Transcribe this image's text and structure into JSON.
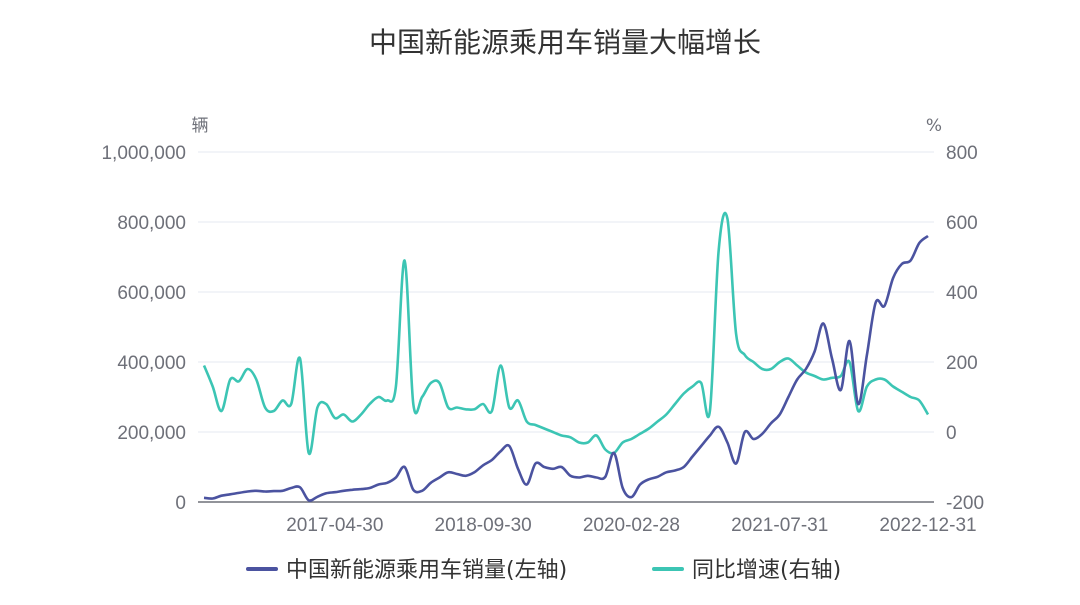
{
  "chart_data": {
    "type": "line",
    "title": "中国新能源乘用车销量大幅增长",
    "left_axis": {
      "unit": "辆",
      "ylim": [
        0,
        1000000
      ],
      "ticks": [
        "0",
        "200,000",
        "400,000",
        "600,000",
        "800,000",
        "1,000,000"
      ]
    },
    "right_axis": {
      "unit": "%",
      "ylim": [
        -200,
        800
      ],
      "ticks": [
        "-200",
        "0",
        "200",
        "400",
        "600",
        "800"
      ]
    },
    "x": [
      "2016-01",
      "2016-02",
      "2016-03",
      "2016-04",
      "2016-05",
      "2016-06",
      "2016-07",
      "2016-08",
      "2016-09",
      "2016-10",
      "2016-11",
      "2016-12",
      "2017-01",
      "2017-02",
      "2017-03",
      "2017-04",
      "2017-05",
      "2017-06",
      "2017-07",
      "2017-08",
      "2017-09",
      "2017-10",
      "2017-11",
      "2017-12",
      "2018-01",
      "2018-02",
      "2018-03",
      "2018-04",
      "2018-05",
      "2018-06",
      "2018-07",
      "2018-08",
      "2018-09",
      "2018-10",
      "2018-11",
      "2018-12",
      "2019-01",
      "2019-02",
      "2019-03",
      "2019-04",
      "2019-05",
      "2019-06",
      "2019-07",
      "2019-08",
      "2019-09",
      "2019-10",
      "2019-11",
      "2019-12",
      "2020-01",
      "2020-02",
      "2020-03",
      "2020-04",
      "2020-05",
      "2020-06",
      "2020-07",
      "2020-08",
      "2020-09",
      "2020-10",
      "2020-11",
      "2020-12",
      "2021-01",
      "2021-02",
      "2021-03",
      "2021-04",
      "2021-05",
      "2021-06",
      "2021-07",
      "2021-08",
      "2021-09",
      "2021-10",
      "2021-11",
      "2021-12",
      "2022-01",
      "2022-02",
      "2022-03",
      "2022-04",
      "2022-05",
      "2022-06",
      "2022-07",
      "2022-08",
      "2022-09",
      "2022-10",
      "2022-11",
      "2022-12"
    ],
    "x_tick_labels": [
      "2017-04-30",
      "2018-09-30",
      "2020-02-28",
      "2021-07-31",
      "2022-12-31"
    ],
    "legend_position": "bottom",
    "grid": true,
    "series": [
      {
        "name": "中国新能源乘用车销量(左轴)",
        "axis": "left",
        "color": "#4b53a0",
        "values": [
          12000,
          10000,
          18000,
          22000,
          26000,
          30000,
          32000,
          30000,
          31000,
          32000,
          40000,
          42000,
          5000,
          15000,
          25000,
          28000,
          32000,
          35000,
          37000,
          40000,
          50000,
          55000,
          70000,
          100000,
          35000,
          32000,
          55000,
          70000,
          85000,
          80000,
          75000,
          85000,
          105000,
          120000,
          145000,
          160000,
          95000,
          50000,
          110000,
          100000,
          95000,
          100000,
          75000,
          70000,
          75000,
          70000,
          72000,
          140000,
          40000,
          14000,
          50000,
          65000,
          72000,
          85000,
          90000,
          100000,
          130000,
          160000,
          190000,
          215000,
          170000,
          110000,
          200000,
          180000,
          195000,
          225000,
          250000,
          300000,
          350000,
          380000,
          430000,
          510000,
          410000,
          320000,
          460000,
          280000,
          420000,
          570000,
          560000,
          640000,
          680000,
          690000,
          740000,
          760000
        ]
      },
      {
        "name": "同比增速(右轴)",
        "axis": "right",
        "color": "#3cc5b4",
        "values": [
          190,
          130,
          60,
          150,
          145,
          180,
          150,
          70,
          60,
          90,
          80,
          210,
          -60,
          70,
          80,
          40,
          50,
          30,
          50,
          80,
          100,
          90,
          130,
          490,
          80,
          100,
          140,
          140,
          70,
          70,
          65,
          65,
          80,
          60,
          190,
          70,
          90,
          30,
          20,
          10,
          0,
          -10,
          -15,
          -30,
          -30,
          -10,
          -50,
          -60,
          -30,
          -20,
          -5,
          10,
          30,
          50,
          80,
          110,
          130,
          140,
          60,
          520,
          610,
          280,
          220,
          200,
          180,
          180,
          200,
          210,
          190,
          170,
          160,
          150,
          155,
          160,
          200,
          60,
          130,
          150,
          150,
          130,
          115,
          100,
          90,
          50
        ]
      }
    ]
  }
}
